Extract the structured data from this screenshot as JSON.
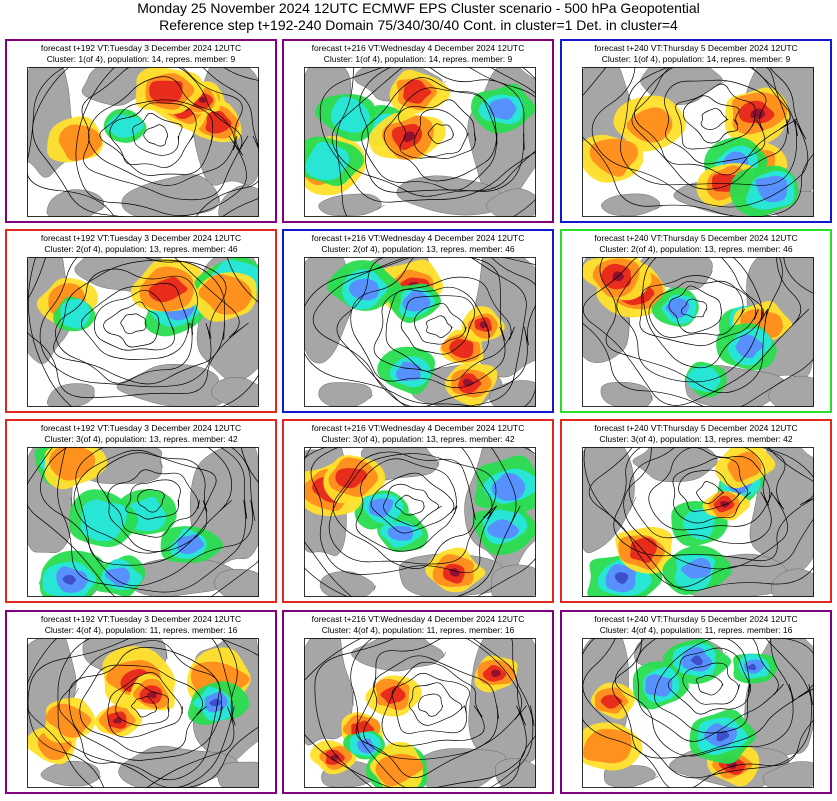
{
  "header": {
    "line1": "Monday 25 November 2024 12UTC ECMWF EPS Cluster scenario - 500 hPa Geopotential",
    "line2": "Reference step t+192-240 Domain 75/340/30/40 Cont. in cluster=1 Det. in cluster=4"
  },
  "colors": {
    "purple": "#800080",
    "red": "#e0281e",
    "blue": "#1018d0",
    "green": "#28e028",
    "land": "#a6a6a6",
    "warm_yellow": "#ffe02a",
    "warm_orange": "#ff8c1e",
    "warm_red": "#e8281e",
    "warm_dark": "#8c1030",
    "cold_green": "#28dc50",
    "cold_cyan": "#28e6dc",
    "cold_blue": "#5a8cff",
    "cold_dark": "#3c4cc8"
  },
  "panels": [
    {
      "row": 0,
      "col": 0,
      "border": "purple",
      "line1": "forecast t+192 VT:Tuesday 3 December 2024 12UTC",
      "line2": "Cluster: 1(of 4), population: 14, repres. member: 9"
    },
    {
      "row": 0,
      "col": 1,
      "border": "purple",
      "line1": "forecast t+216 VT:Wednesday 4 December 2024 12UTC",
      "line2": "Cluster: 1(of 4), population: 14, repres. member: 9"
    },
    {
      "row": 0,
      "col": 2,
      "border": "blue",
      "line1": "forecast t+240 VT:Thursday 5 December 2024 12UTC",
      "line2": "Cluster: 1(of 4), population: 14, repres. member: 9"
    },
    {
      "row": 1,
      "col": 0,
      "border": "red",
      "line1": "forecast t+192 VT:Tuesday 3 December 2024 12UTC",
      "line2": "Cluster: 2(of 4), population: 13, repres. member: 46"
    },
    {
      "row": 1,
      "col": 1,
      "border": "blue",
      "line1": "forecast t+216 VT:Wednesday 4 December 2024 12UTC",
      "line2": "Cluster: 2(of 4), population: 13, repres. member: 46"
    },
    {
      "row": 1,
      "col": 2,
      "border": "green",
      "line1": "forecast t+240 VT:Thursday 5 December 2024 12UTC",
      "line2": "Cluster: 2(of 4), population: 13, repres. member: 46"
    },
    {
      "row": 2,
      "col": 0,
      "border": "red",
      "line1": "forecast t+192 VT:Tuesday 3 December 2024 12UTC",
      "line2": "Cluster: 3(of 4), population: 13, repres. member: 42"
    },
    {
      "row": 2,
      "col": 1,
      "border": "red",
      "line1": "forecast t+216 VT:Wednesday 4 December 2024 12UTC",
      "line2": "Cluster: 3(of 4), population: 13, repres. member: 42"
    },
    {
      "row": 2,
      "col": 2,
      "border": "red",
      "line1": "forecast t+240 VT:Thursday 5 December 2024 12UTC",
      "line2": "Cluster: 3(of 4), population: 13, repres. member: 42"
    },
    {
      "row": 3,
      "col": 0,
      "border": "purple",
      "line1": "forecast t+192 VT:Tuesday 3 December 2024 12UTC",
      "line2": "Cluster: 4(of 4), population: 11, repres. member: 16"
    },
    {
      "row": 3,
      "col": 1,
      "border": "purple",
      "line1": "forecast t+216 VT:Wednesday 4 December 2024 12UTC",
      "line2": "Cluster: 4(of 4), population: 11, repres. member: 16"
    },
    {
      "row": 3,
      "col": 2,
      "border": "purple",
      "line1": "forecast t+240 VT:Thursday 5 December 2024 12UTC",
      "line2": "Cluster: 4(of 4), population: 11, repres. member: 16"
    }
  ]
}
